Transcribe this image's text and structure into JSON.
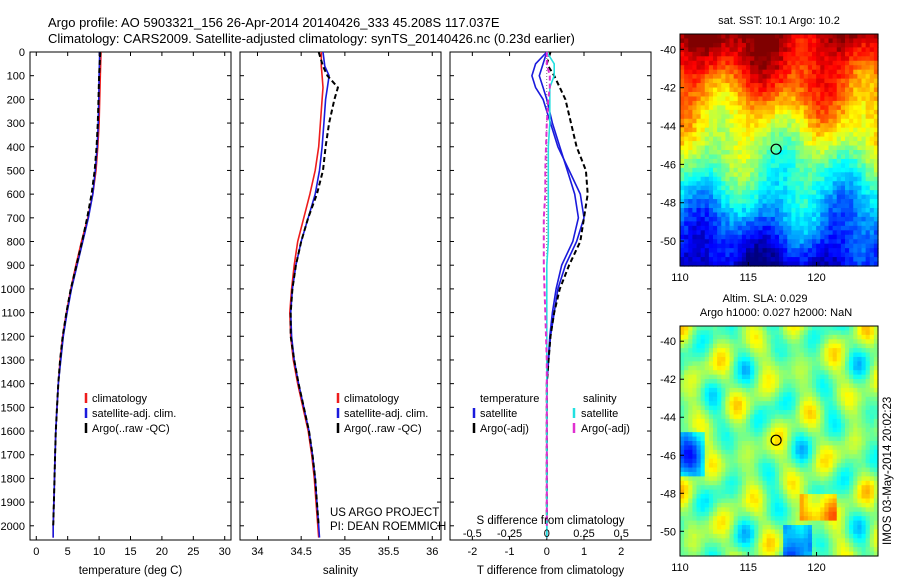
{
  "header": {
    "line1": "Argo profile: AO 5903321_156 26-Apr-2014 20140426_333 45.208S 117.037E",
    "line2": "Climatology: CARS2009. Satellite-adjusted climatology: synTS_20140426.nc (0.23d earlier)"
  },
  "colors": {
    "climatology": "#ee1c1c",
    "satellite": "#1a1adc",
    "argo": "#000000",
    "salinity_sat": "#22e0e0",
    "salinity_argo": "#e030d0"
  },
  "depth_axis": {
    "ticks": [
      0,
      100,
      200,
      300,
      400,
      500,
      600,
      700,
      800,
      900,
      1000,
      1100,
      1200,
      1300,
      1400,
      1500,
      1600,
      1700,
      1800,
      1900,
      2000
    ],
    "range": [
      0,
      2060
    ]
  },
  "annotations": {
    "project": "US ARGO PROJECT",
    "pi": "PI: DEAN ROEMMICH",
    "timestamp": "IMOS 03-May-2014 20:02:23"
  },
  "chart_data": [
    {
      "type": "line",
      "name": "temperature-panel",
      "xlabel": "temperature (deg C)",
      "ylabel": "",
      "xlim": [
        -1,
        31
      ],
      "xticks": [
        0,
        5,
        10,
        15,
        20,
        25,
        30
      ],
      "legend": {
        "placement": "bottom-left",
        "entries": [
          "climatology",
          "satellite-adj. clim.",
          "Argo(..raw -QC)"
        ]
      },
      "series": [
        {
          "name": "climatology",
          "style": "solid",
          "color": "#ee1c1c",
          "depth": [
            0,
            100,
            200,
            300,
            400,
            500,
            600,
            700,
            800,
            900,
            1000,
            1100,
            1200,
            1300,
            1400,
            1500,
            1600,
            1700,
            1800,
            1900,
            2000,
            2050
          ],
          "values": [
            10.3,
            10.2,
            10.1,
            10.0,
            9.8,
            9.5,
            9.0,
            8.2,
            7.2,
            6.3,
            5.5,
            4.8,
            4.2,
            3.8,
            3.5,
            3.3,
            3.1,
            3.0,
            2.9,
            2.8,
            2.7,
            2.7
          ]
        },
        {
          "name": "satellite-adj. clim.",
          "style": "solid",
          "color": "#1a1adc",
          "depth": [
            0,
            100,
            200,
            300,
            400,
            500,
            600,
            700,
            800,
            900,
            1000,
            1100,
            1200,
            1300,
            1400,
            1500,
            1600,
            1700,
            1800,
            1900,
            2000,
            2050
          ],
          "values": [
            10.1,
            10.0,
            9.95,
            9.85,
            9.7,
            9.4,
            9.0,
            8.3,
            7.4,
            6.5,
            5.6,
            4.9,
            4.3,
            3.9,
            3.5,
            3.3,
            3.1,
            3.0,
            2.9,
            2.8,
            2.7,
            2.7
          ]
        },
        {
          "name": "Argo(..raw -QC)",
          "style": "dashed",
          "color": "#000000",
          "depth": [
            0,
            100,
            200,
            300,
            400,
            500,
            600,
            700,
            800,
            900,
            1000,
            1100,
            1200,
            1300,
            1400,
            1500,
            1600,
            1700,
            1800,
            1900,
            2000
          ],
          "values": [
            10.2,
            10.0,
            9.9,
            9.8,
            9.6,
            9.3,
            8.8,
            8.1,
            7.3,
            6.4,
            5.5,
            4.8,
            4.2,
            3.8,
            3.5,
            3.3,
            3.1,
            3.0,
            2.9,
            2.8,
            2.7
          ]
        }
      ]
    },
    {
      "type": "line",
      "name": "salinity-panel",
      "xlabel": "salinity",
      "xlim": [
        33.8,
        36.1
      ],
      "xticks": [
        34,
        34.5,
        35,
        35.5,
        36
      ],
      "xtick_labels": [
        "34",
        "34.5",
        "35",
        "35.5",
        "36"
      ],
      "legend": {
        "placement": "bottom-left",
        "entries": [
          "climatology",
          "satellite-adj. clim.",
          "Argo(..raw -QC)"
        ]
      },
      "series": [
        {
          "name": "climatology",
          "style": "solid",
          "color": "#ee1c1c",
          "depth": [
            0,
            60,
            100,
            150,
            200,
            300,
            400,
            500,
            600,
            700,
            800,
            900,
            1000,
            1100,
            1200,
            1300,
            1400,
            1500,
            1600,
            1700,
            1800,
            1900,
            2000,
            2050
          ],
          "values": [
            34.73,
            34.73,
            34.74,
            34.75,
            34.74,
            34.72,
            34.7,
            34.66,
            34.6,
            34.53,
            34.46,
            34.42,
            34.39,
            34.37,
            34.38,
            34.41,
            34.46,
            34.52,
            34.58,
            34.62,
            34.65,
            34.67,
            34.69,
            34.7
          ]
        },
        {
          "name": "satellite-adj. clim.",
          "style": "solid",
          "color": "#1a1adc",
          "depth": [
            0,
            60,
            100,
            150,
            200,
            300,
            400,
            500,
            600,
            700,
            800,
            900,
            1000,
            1100,
            1200,
            1300,
            1400,
            1500,
            1600,
            1700,
            1800,
            1900,
            2000,
            2050
          ],
          "values": [
            34.75,
            34.77,
            34.82,
            34.8,
            34.78,
            34.76,
            34.74,
            34.71,
            34.66,
            34.58,
            34.5,
            34.44,
            34.4,
            34.38,
            34.39,
            34.42,
            34.47,
            34.53,
            34.59,
            34.63,
            34.66,
            34.68,
            34.7,
            34.71
          ]
        },
        {
          "name": "Argo(..raw -QC)",
          "style": "dashed",
          "color": "#000000",
          "depth": [
            0,
            60,
            100,
            150,
            200,
            300,
            400,
            500,
            600,
            700,
            800,
            900,
            1000,
            1100,
            1200,
            1300,
            1400,
            1500,
            1600,
            1700,
            1800,
            1900,
            2000
          ],
          "values": [
            34.7,
            34.75,
            34.8,
            34.92,
            34.88,
            34.82,
            34.78,
            34.75,
            34.68,
            34.58,
            34.5,
            34.44,
            34.4,
            34.38,
            34.38,
            34.42,
            34.47,
            34.53,
            34.59,
            34.63,
            34.66,
            34.68,
            34.7
          ]
        }
      ]
    },
    {
      "type": "line",
      "name": "difference-panel",
      "xlabel": "T difference from climatology",
      "xlabel2": "S difference from climatology",
      "xlim": [
        -2.6,
        2.8
      ],
      "xticks": [
        -2,
        -1,
        0,
        1,
        2
      ],
      "xtick_labels": [
        "-2",
        "-1",
        "0",
        "1",
        "2"
      ],
      "sticks": [
        -0.5,
        -0.25,
        0,
        0.25,
        0.5
      ],
      "stick_labels": [
        "-0.5",
        "-0.25",
        "0",
        "0.25",
        "0.5"
      ],
      "s_scale_per_t_unit": 0.25,
      "legend": {
        "placement": "bottom",
        "temperature_title": "temperature",
        "salinity_title": "salinity",
        "temperature_entries": [
          "satellite",
          "Argo(-adj)"
        ],
        "salinity_entries": [
          "satellite",
          "Argo(-adj)"
        ]
      },
      "series": [
        {
          "name": "satellite",
          "group": "temperature",
          "style": "solid",
          "color": "#1a1adc",
          "depth": [
            0,
            50,
            100,
            150,
            200,
            300,
            400,
            500,
            600,
            700,
            800,
            900,
            1000,
            1100,
            1200,
            1300,
            1400,
            1500,
            1600,
            1700,
            1800,
            1900,
            2000,
            2050
          ],
          "values": [
            0.0,
            -0.3,
            -0.4,
            -0.3,
            -0.1,
            0.1,
            0.3,
            0.6,
            0.9,
            1.0,
            0.8,
            0.5,
            0.3,
            0.2,
            0.1,
            0.05,
            0.0,
            0.0,
            0.0,
            0.0,
            0.0,
            0.0,
            0.0,
            0.0
          ]
        },
        {
          "name": "satellite",
          "group": "temperature2",
          "style": "solid",
          "color": "#1a1adc",
          "depth": [
            0,
            50,
            100,
            150,
            200,
            300,
            400,
            500,
            600,
            700,
            800,
            900,
            1000,
            1100,
            1200,
            1300,
            1400,
            1500
          ],
          "values": [
            0.0,
            -0.1,
            -0.2,
            -0.1,
            0.0,
            0.15,
            0.35,
            0.55,
            0.75,
            0.85,
            0.7,
            0.4,
            0.25,
            0.15,
            0.08,
            0.04,
            0.0,
            0.0
          ]
        },
        {
          "name": "Argo(-adj)",
          "group": "temperature",
          "style": "dashed",
          "color": "#000000",
          "depth": [
            0,
            50,
            100,
            150,
            200,
            300,
            400,
            500,
            600,
            700,
            800,
            900,
            1000,
            1100,
            1200,
            1300,
            1400,
            1500,
            1600,
            1700,
            1800,
            1900,
            2000
          ],
          "values": [
            0.1,
            0.0,
            0.2,
            0.35,
            0.5,
            0.65,
            0.8,
            1.05,
            1.1,
            1.0,
            0.9,
            0.6,
            0.35,
            0.2,
            0.1,
            0.05,
            0.0,
            0.0,
            0.0,
            0.0,
            0.0,
            0.0,
            0.0
          ]
        },
        {
          "name": "satellite",
          "group": "salinity",
          "style": "solid",
          "color": "#22e0e0",
          "depth": [
            0,
            50,
            100,
            150,
            200,
            300,
            400,
            500,
            600,
            700,
            800,
            900,
            1000,
            1100,
            1200,
            1300,
            1400,
            1500,
            1600,
            1700,
            1800,
            1900,
            2000,
            2050
          ],
          "values": [
            0.0,
            0.05,
            0.05,
            0.02,
            0.02,
            0.02,
            0.01,
            0.01,
            0.01,
            0.01,
            0.01,
            0.0,
            0.0,
            0.0,
            0.0,
            0.0,
            0.0,
            0.0,
            0.0,
            0.0,
            0.0,
            0.0,
            0.0,
            0.0
          ]
        },
        {
          "name": "Argo(-adj)",
          "group": "salinity",
          "style": "dashed",
          "color": "#e030d0",
          "depth": [
            0,
            50,
            100,
            150,
            200,
            300,
            400,
            500,
            600,
            700,
            800,
            900,
            1000,
            1100,
            1200,
            1300,
            1400,
            1500,
            1600,
            1700,
            1800,
            1900,
            2000
          ],
          "values": [
            0.0,
            0.0,
            0.02,
            0.02,
            0.01,
            0.0,
            -0.005,
            -0.01,
            -0.01,
            -0.02,
            -0.02,
            -0.02,
            -0.015,
            -0.01,
            -0.005,
            0.0,
            0.0,
            0.0,
            0.0,
            0.0,
            0.0,
            0.0,
            0.0
          ]
        }
      ]
    },
    {
      "type": "heatmap",
      "name": "sst-map",
      "title": "sat. SST: 10.1  Argo: 10.2",
      "xlim": [
        110,
        124.5
      ],
      "ylim": [
        -51.3,
        -39.2
      ],
      "xticks": [
        110,
        115,
        120
      ],
      "yticks": [
        -40,
        -42,
        -44,
        -46,
        -48,
        -50
      ],
      "ytick_labels": [
        "-40",
        "-42",
        "-44",
        "-46",
        "-48",
        "-50"
      ],
      "marker": {
        "lon": 117.037,
        "lat": -45.208
      },
      "colormap": "jet"
    },
    {
      "type": "heatmap",
      "name": "sla-map",
      "title": "Altim. SLA: 0.029",
      "subtitle": "Argo h1000: 0.027 h2000: NaN",
      "xlim": [
        110,
        124.5
      ],
      "ylim": [
        -51.3,
        -39.2
      ],
      "xticks": [
        110,
        115,
        120
      ],
      "yticks": [
        -40,
        -42,
        -44,
        -46,
        -48,
        -50
      ],
      "ytick_labels": [
        "-40",
        "-42",
        "-44",
        "-46",
        "-48",
        "-50"
      ],
      "marker": {
        "lon": 117.037,
        "lat": -45.208
      },
      "colormap": "jet"
    }
  ]
}
